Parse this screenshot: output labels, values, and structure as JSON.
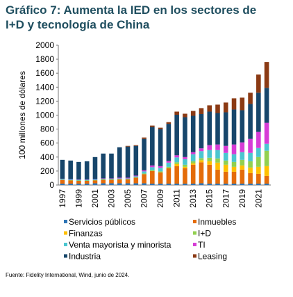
{
  "chart_data": {
    "type": "stacked_bar",
    "title": "Gráfico 7: Aumenta la IED en los sectores de I+D y tecnología de China",
    "y_label": "100 millones de dólares",
    "source": "Fuente: Fidelity International, Wind, junio de 2024.",
    "categories": [
      "1997",
      null,
      "1999",
      null,
      "2001",
      null,
      "2003",
      null,
      "2005",
      null,
      "2007",
      null,
      "2009",
      null,
      "2011",
      null,
      "2013",
      null,
      "2015",
      null,
      "2017",
      null,
      "2019",
      null,
      "2021",
      null
    ],
    "ylim": [
      0,
      2000
    ],
    "yticks": [
      0,
      200,
      400,
      600,
      800,
      1000,
      1200,
      1400,
      1600,
      1800,
      2000
    ],
    "series": [
      {
        "name": "Servicios públicos",
        "color": "#2e75b6",
        "values": [
          20,
          20,
          20,
          20,
          25,
          25,
          25,
          25,
          25,
          25,
          25,
          20,
          20,
          20,
          20,
          20,
          20,
          25,
          20,
          20,
          20,
          20,
          20,
          20,
          20,
          20
        ]
      },
      {
        "name": "Inmuebles",
        "color": "#e46c0a",
        "values": [
          50,
          45,
          40,
          40,
          40,
          50,
          50,
          55,
          55,
          80,
          130,
          180,
          160,
          220,
          250,
          220,
          270,
          300,
          270,
          200,
          170,
          170,
          200,
          150,
          140,
          110
        ]
      },
      {
        "name": "Finanzas",
        "color": "#ffc000",
        "values": [
          0,
          0,
          0,
          0,
          0,
          0,
          0,
          0,
          0,
          0,
          0,
          0,
          0,
          0,
          30,
          20,
          20,
          30,
          50,
          100,
          100,
          70,
          60,
          80,
          100,
          140
        ]
      },
      {
        "name": "I+D",
        "color": "#92d050",
        "values": [
          5,
          5,
          5,
          5,
          5,
          5,
          5,
          5,
          5,
          5,
          10,
          15,
          15,
          20,
          25,
          30,
          30,
          30,
          50,
          60,
          60,
          70,
          80,
          90,
          140,
          220
        ]
      },
      {
        "name": "Venta mayorista y minorista",
        "color": "#4bc6d0",
        "values": [
          10,
          10,
          10,
          10,
          10,
          10,
          10,
          10,
          10,
          15,
          30,
          40,
          50,
          60,
          70,
          80,
          100,
          100,
          110,
          120,
          110,
          110,
          110,
          120,
          130,
          100
        ]
      },
      {
        "name": "TI",
        "color": "#d63cd6",
        "values": [
          5,
          5,
          5,
          5,
          5,
          5,
          5,
          10,
          10,
          10,
          15,
          25,
          25,
          25,
          30,
          30,
          30,
          40,
          70,
          80,
          100,
          140,
          140,
          200,
          230,
          300
        ]
      },
      {
        "name": "Industria",
        "color": "#17466b",
        "values": [
          270,
          265,
          250,
          260,
          315,
          355,
          355,
          435,
          445,
          425,
          450,
          550,
          530,
          530,
          580,
          570,
          520,
          490,
          480,
          450,
          480,
          500,
          460,
          500,
          560,
          500
        ]
      },
      {
        "name": "Leasing",
        "color": "#8b3a14",
        "values": [
          0,
          0,
          0,
          0,
          0,
          0,
          0,
          0,
          10,
          10,
          20,
          20,
          20,
          25,
          45,
          50,
          70,
          85,
          90,
          120,
          140,
          160,
          180,
          160,
          260,
          370
        ]
      }
    ]
  }
}
